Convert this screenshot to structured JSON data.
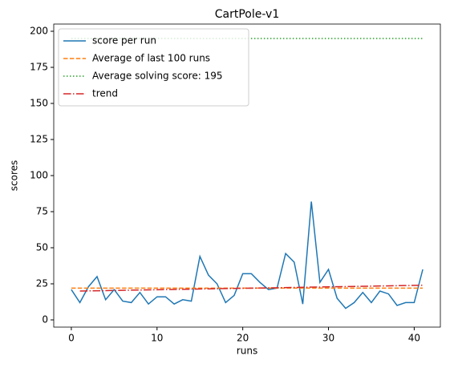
{
  "chart_data": {
    "type": "line",
    "title": "CartPole-v1",
    "xlabel": "runs",
    "ylabel": "scores",
    "xlim": [
      -2.05,
      43.05
    ],
    "ylim": [
      -5,
      205
    ],
    "xticks": [
      0,
      10,
      20,
      30,
      40
    ],
    "yticks": [
      0,
      25,
      50,
      75,
      100,
      125,
      150,
      175,
      200
    ],
    "legend": "upper left",
    "series": [
      {
        "name": "score per run",
        "color": "#1f77b4",
        "linestyle": "solid",
        "x": [
          0,
          1,
          2,
          3,
          4,
          5,
          6,
          7,
          8,
          9,
          10,
          11,
          12,
          13,
          14,
          15,
          16,
          17,
          18,
          19,
          20,
          21,
          22,
          23,
          24,
          25,
          26,
          27,
          28,
          29,
          30,
          31,
          32,
          33,
          34,
          35,
          36,
          37,
          38,
          39,
          40,
          41
        ],
        "values": [
          21,
          12,
          23,
          30,
          14,
          21,
          13,
          12,
          19,
          11,
          16,
          16,
          11,
          14,
          13,
          44,
          31,
          25,
          12,
          17,
          32,
          32,
          26,
          21,
          22,
          46,
          40,
          11,
          82,
          26,
          35,
          15,
          8,
          12,
          19,
          12,
          20,
          18,
          10,
          12,
          12,
          35
        ]
      },
      {
        "name": "Average of last 100 runs",
        "color": "#ff7f0e",
        "linestyle": "dashed",
        "x": [
          0,
          41
        ],
        "values": [
          22,
          22
        ]
      },
      {
        "name": "Average solving score: 195",
        "color": "#2ca02c",
        "linestyle": "dotted",
        "x": [
          0,
          41
        ],
        "values": [
          195,
          195
        ]
      },
      {
        "name": "trend",
        "color": "#d62728",
        "linestyle": "dashdot",
        "x": [
          1,
          41
        ],
        "values": [
          20,
          24
        ]
      }
    ]
  }
}
